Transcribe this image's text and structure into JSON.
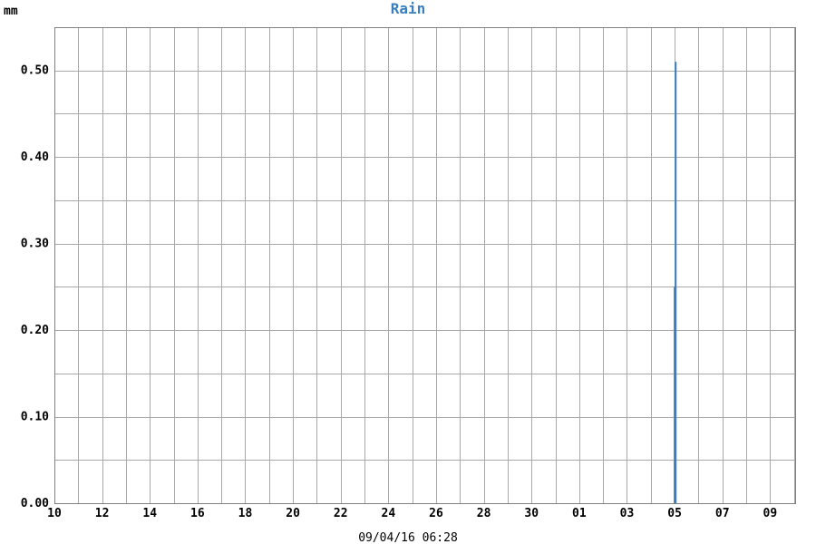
{
  "chart_data": {
    "type": "bar",
    "title": "Rain",
    "ylabel": "mm",
    "xlabel": "09/04/16 06:28",
    "ylim": [
      0,
      0.55
    ],
    "y_ticks": [
      "0.00",
      "0.10",
      "0.20",
      "0.30",
      "0.40",
      "0.50"
    ],
    "x_ticks": [
      "10",
      "12",
      "14",
      "16",
      "18",
      "20",
      "22",
      "24",
      "26",
      "28",
      "30",
      "01",
      "03",
      "05",
      "07",
      "09"
    ],
    "grid": true,
    "series": [
      {
        "values": [
          {
            "x": "2016-04-05 00:00",
            "y": 0.25
          },
          {
            "x": "2016-04-05 01:00",
            "y": 0.51
          }
        ]
      }
    ]
  },
  "colors": {
    "series": "#3a7fbf",
    "title": "#3a7fbf",
    "grid": "#a9a9a9",
    "axis": "#808080"
  }
}
